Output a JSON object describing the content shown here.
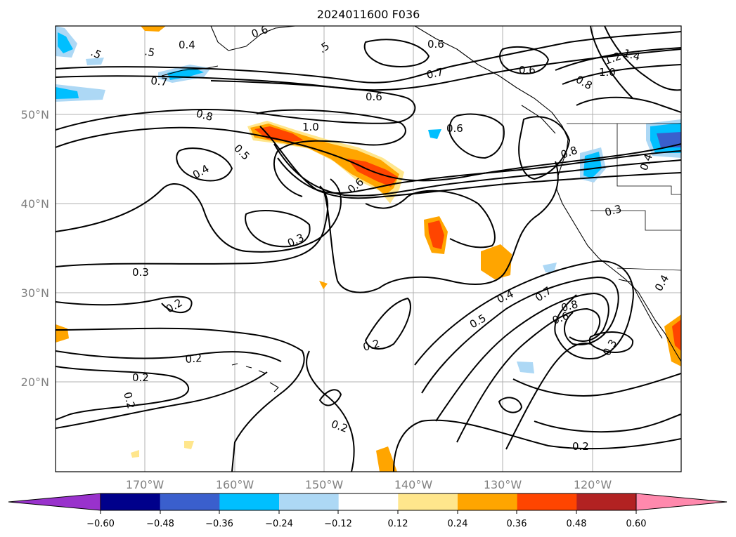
{
  "title": "2024011600 F036",
  "lat_labels": [
    "50°N",
    "40°N",
    "30°N",
    "20°N"
  ],
  "lon_labels": [
    "170°W",
    "160°W",
    "150°W",
    "140°W",
    "130°W",
    "120°W"
  ],
  "colorbar": {
    "ticks": [
      "−0.60",
      "−0.48",
      "−0.36",
      "−0.24",
      "−0.12",
      "0.12",
      "0.24",
      "0.36",
      "0.48",
      "0.60"
    ],
    "colors": [
      "#9932cc",
      "#00008b",
      "#3a5fcd",
      "#00bfff",
      "#add8f5",
      "#ffffff",
      "#ffe68c",
      "#ffa500",
      "#ff4500",
      "#b22222",
      "#ff89ad"
    ],
    "extend": "both"
  },
  "contour_labels": [
    ".5",
    ".5",
    "0.4",
    "0.6",
    ".5",
    "0.6",
    "0.7",
    "0.7",
    "0.6",
    "0.6",
    "1.2",
    "1.4",
    "1.0",
    "0.8",
    "0.8",
    "1.0",
    "0.5",
    "0.4",
    "0.6",
    "0.6",
    "0.8",
    "0.4",
    "0.3",
    "0.3",
    "0.3",
    "0.2",
    "0.4",
    "0.7",
    "0.8",
    "0.5",
    "0.6",
    "0.2",
    "0.3",
    "0.4",
    "0.2",
    "0.2",
    "0.2",
    "0.2",
    "0.2"
  ]
}
